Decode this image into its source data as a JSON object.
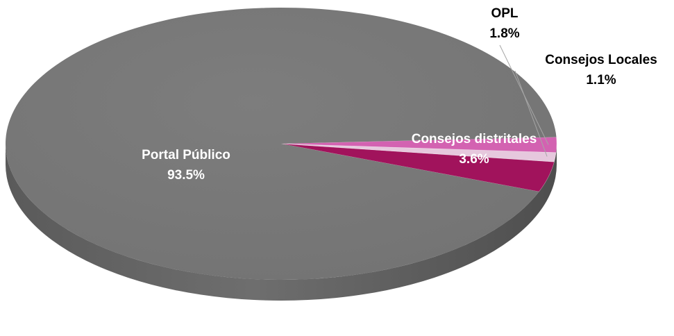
{
  "chart_data": {
    "type": "pie",
    "title": "",
    "slices": [
      {
        "name": "Portal Público",
        "value": 93.5,
        "label": "93.5%",
        "color": "#7b7b7b"
      },
      {
        "name": "Consejos distritales",
        "value": 3.6,
        "label": "3.6%",
        "color": "#a1135c"
      },
      {
        "name": "Consejos Locales",
        "value": 1.1,
        "label": "1.1%",
        "color": "#e6c8dd"
      },
      {
        "name": "OPL",
        "value": 1.8,
        "label": "1.8%",
        "color": "#d362b1"
      }
    ],
    "legend": "none",
    "style": "3d-tilted"
  }
}
